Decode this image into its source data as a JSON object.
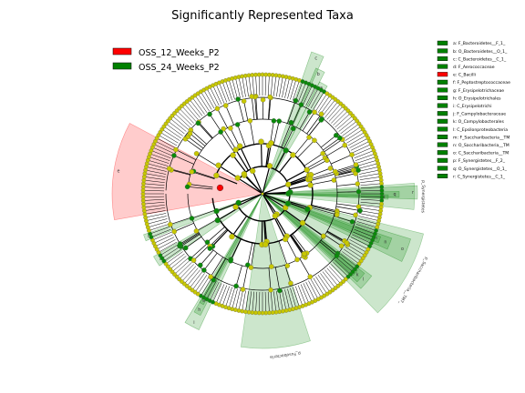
{
  "chart_data": {
    "type": "cladogram",
    "title": "Significantly Represented Taxa",
    "groups": [
      {
        "name": "OSS_12_Weeks_P2",
        "color": "#ff0000"
      },
      {
        "name": "OSS_24_Weeks_P2",
        "color": "#008000"
      }
    ],
    "node_color_neutral": "#c8c800",
    "taxa": [
      {
        "id": "a",
        "label": "a: F_Bacteroidetes__F_1_",
        "group": "OSS_24_Weeks_P2"
      },
      {
        "id": "b",
        "label": "b: O_Bacteroidetes__O_1_",
        "group": "OSS_24_Weeks_P2"
      },
      {
        "id": "c",
        "label": "c: C_Bacteroidetes__C_1_",
        "group": "OSS_24_Weeks_P2"
      },
      {
        "id": "d",
        "label": "d: F_Aerococcaceae",
        "group": "OSS_24_Weeks_P2"
      },
      {
        "id": "e",
        "label": "e: C_Bacilli",
        "group": "OSS_12_Weeks_P2"
      },
      {
        "id": "f",
        "label": "f: F_Peptostreptococcaceae",
        "group": "OSS_24_Weeks_P2"
      },
      {
        "id": "g",
        "label": "g: F_Erysipelotrichaceae",
        "group": "OSS_24_Weeks_P2"
      },
      {
        "id": "h",
        "label": "h: O_Erysipelotrichales",
        "group": "OSS_24_Weeks_P2"
      },
      {
        "id": "i",
        "label": "i: C_Erysipelotrichi",
        "group": "OSS_24_Weeks_P2"
      },
      {
        "id": "j",
        "label": "j: F_Campylobacteraceae",
        "group": "OSS_24_Weeks_P2"
      },
      {
        "id": "k",
        "label": "k: O_Campylobacterales",
        "group": "OSS_24_Weeks_P2"
      },
      {
        "id": "l",
        "label": "l: C_Epsilonproteobacteria",
        "group": "OSS_24_Weeks_P2"
      },
      {
        "id": "m",
        "label": "m: F_Saccharibacteria__TM",
        "group": "OSS_24_Weeks_P2"
      },
      {
        "id": "n",
        "label": "n: O_Saccharibacteria__TM",
        "group": "OSS_24_Weeks_P2"
      },
      {
        "id": "o",
        "label": "o: C_Saccharibacteria__TM",
        "group": "OSS_24_Weeks_P2"
      },
      {
        "id": "p",
        "label": "p: F_Synergistetes__F_2_",
        "group": "OSS_24_Weeks_P2"
      },
      {
        "id": "q",
        "label": "q: O_Synergistetes__O_1_",
        "group": "OSS_24_Weeks_P2"
      },
      {
        "id": "r",
        "label": "r: C_Synergistetes__C_1_",
        "group": "OSS_24_Weeks_P2"
      }
    ],
    "phylum_labels": [
      {
        "text": "p_Synergistetes",
        "group": "OSS_24_Weeks_P2"
      },
      {
        "text": "p_Saccharibacteria__TM7_",
        "group": "OSS_24_Weeks_P2"
      },
      {
        "text": "p_Fusobacteria",
        "group": "OSS_24_Weeks_P2"
      }
    ],
    "highlighted_sectors": [
      {
        "letter": "c",
        "group": "OSS_24_Weeks_P2"
      },
      {
        "letter": "b",
        "group": "OSS_24_Weeks_P2"
      },
      {
        "letter": "a",
        "group": "OSS_24_Weeks_P2"
      },
      {
        "letter": "r",
        "group": "OSS_24_Weeks_P2"
      },
      {
        "letter": "q",
        "group": "OSS_24_Weeks_P2"
      },
      {
        "letter": "p",
        "group": "OSS_24_Weeks_P2"
      },
      {
        "letter": "o",
        "group": "OSS_24_Weeks_P2"
      },
      {
        "letter": "n",
        "group": "OSS_24_Weeks_P2"
      },
      {
        "letter": "m",
        "group": "OSS_24_Weeks_P2"
      },
      {
        "letter": "l",
        "group": "OSS_24_Weeks_P2"
      },
      {
        "letter": "k",
        "group": "OSS_24_Weeks_P2"
      },
      {
        "letter": "j",
        "group": "OSS_24_Weeks_P2"
      },
      {
        "letter": "i",
        "group": "OSS_24_Weeks_P2"
      },
      {
        "letter": "h",
        "group": "OSS_24_Weeks_P2"
      },
      {
        "letter": "g",
        "group": "OSS_24_Weeks_P2"
      },
      {
        "letter": "f",
        "group": "OSS_24_Weeks_P2"
      },
      {
        "letter": "d",
        "group": "OSS_24_Weeks_P2"
      },
      {
        "letter": "e",
        "group": "OSS_12_Weeks_P2"
      }
    ]
  }
}
